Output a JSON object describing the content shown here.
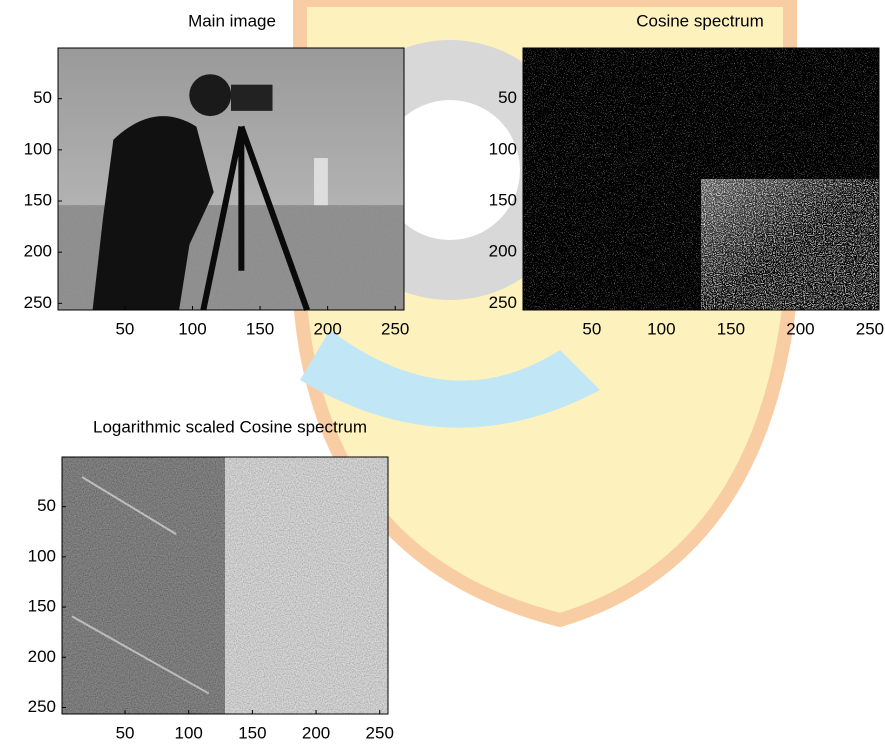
{
  "chart_data": [
    {
      "type": "image",
      "title": "Main image",
      "xlim": [
        0.5,
        256.5
      ],
      "ylim": [
        256.5,
        0.5
      ],
      "xticks": [
        50,
        100,
        150,
        200,
        250
      ],
      "yticks": [
        50,
        100,
        150,
        200,
        250
      ]
    },
    {
      "type": "image",
      "title": "Cosine spectrum",
      "xlim": [
        0.5,
        256.5
      ],
      "ylim": [
        256.5,
        0.5
      ],
      "xticks": [
        50,
        100,
        150,
        200,
        250
      ],
      "yticks": [
        50,
        100,
        150,
        200,
        250
      ]
    },
    {
      "type": "image",
      "title": "Logarithmic scaled Cosine spectrum",
      "xlim": [
        0.5,
        256.5
      ],
      "ylim": [
        256.5,
        0.5
      ],
      "xticks": [
        50,
        100,
        150,
        200,
        250
      ],
      "yticks": [
        50,
        100,
        150,
        200,
        250
      ]
    }
  ]
}
